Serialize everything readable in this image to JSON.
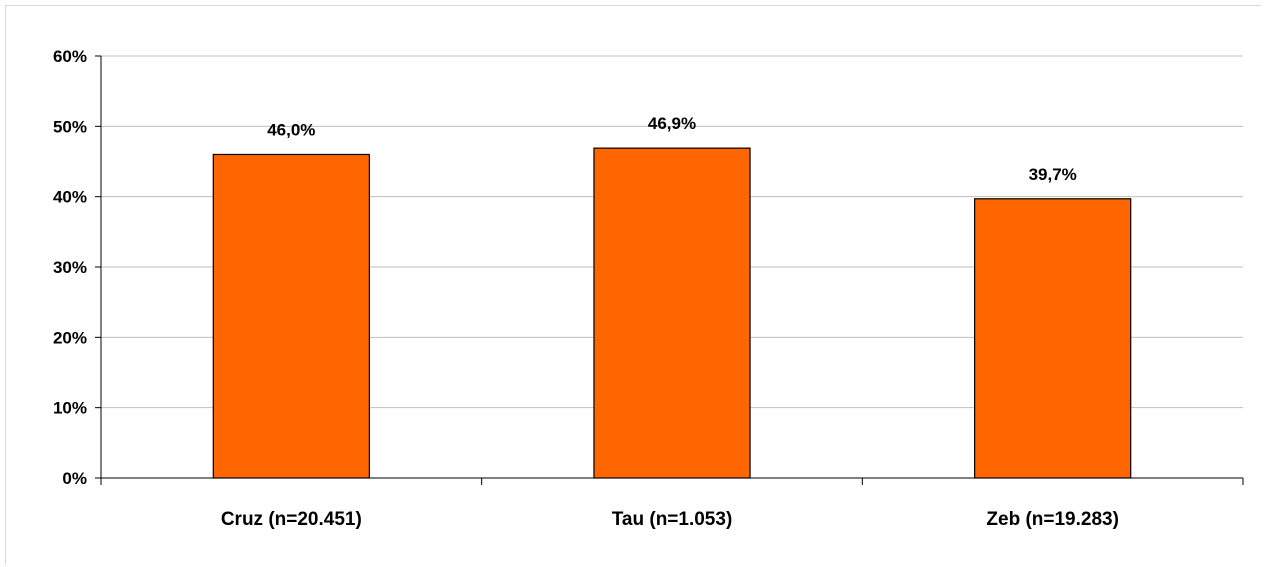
{
  "chart_data": {
    "type": "bar",
    "categories": [
      "Cruz (n=20.451)",
      "Tau (n=1.053)",
      "Zeb (n=19.283)"
    ],
    "values": [
      46.0,
      46.9,
      39.7
    ],
    "value_labels": [
      "46,0%",
      "46,9%",
      "39,7%"
    ],
    "title": "",
    "xlabel": "",
    "ylabel": "",
    "ylim": [
      0,
      60
    ],
    "yticks": [
      0,
      10,
      20,
      30,
      40,
      50,
      60
    ],
    "ytick_labels": [
      "0%",
      "10%",
      "20%",
      "30%",
      "40%",
      "50%",
      "60%"
    ],
    "grid": true,
    "legend": "none",
    "bar_color": "#ff6600",
    "bar_edge_color": "#000000",
    "grid_color": "#bfbfbf"
  }
}
